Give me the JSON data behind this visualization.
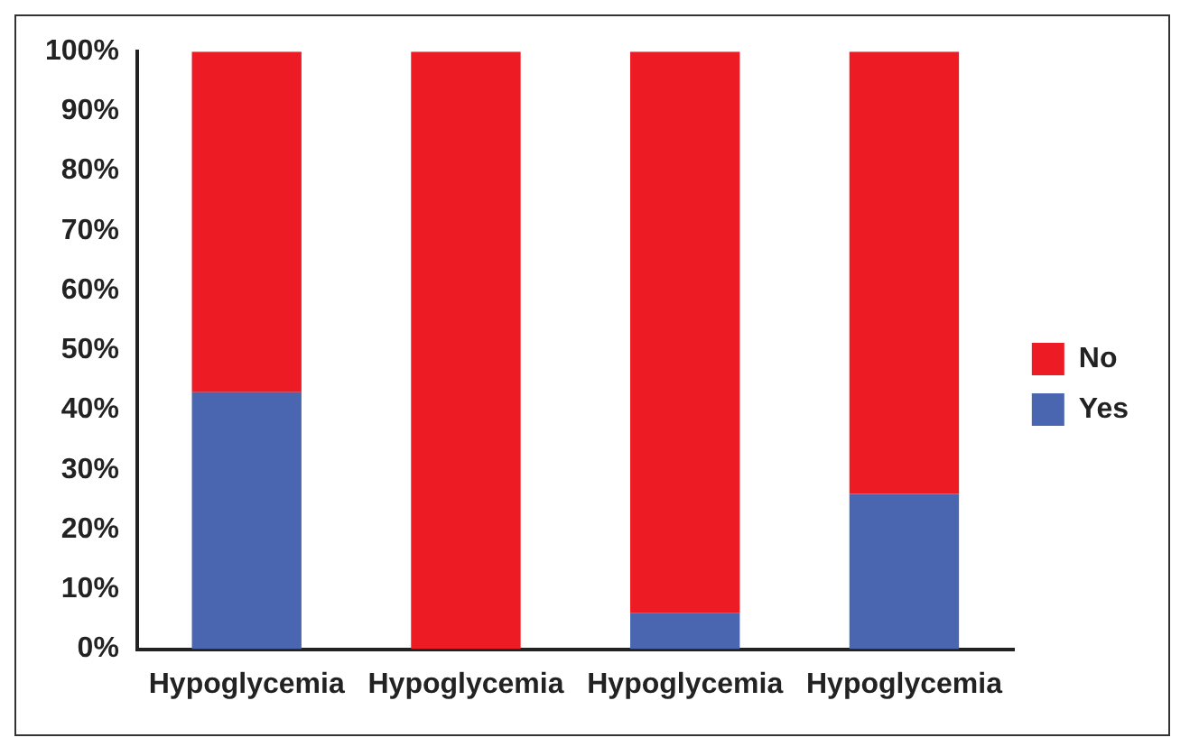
{
  "chart_data": {
    "type": "bar",
    "stacked": true,
    "categories": [
      "Hypoglycemia",
      "Hypoglycemia",
      "Hypoglycemia",
      "Hypoglycemia"
    ],
    "series": [
      {
        "name": "Yes",
        "color": "#4a66b0",
        "values": [
          43,
          0,
          6,
          26
        ]
      },
      {
        "name": "No",
        "color": "#ed1c24",
        "values": [
          57,
          100,
          94,
          74
        ]
      }
    ],
    "ylim": [
      0,
      100
    ],
    "yticks": [
      {
        "value": 0,
        "label": "0%"
      },
      {
        "value": 10,
        "label": "10%"
      },
      {
        "value": 20,
        "label": "20%"
      },
      {
        "value": 30,
        "label": "30%"
      },
      {
        "value": 40,
        "label": "40%"
      },
      {
        "value": 50,
        "label": "50%"
      },
      {
        "value": 60,
        "label": "60%"
      },
      {
        "value": 70,
        "label": "70%"
      },
      {
        "value": 80,
        "label": "80%"
      },
      {
        "value": 90,
        "label": "90%"
      },
      {
        "value": 100,
        "label": "100%"
      }
    ],
    "grid": false,
    "legend": "right"
  }
}
